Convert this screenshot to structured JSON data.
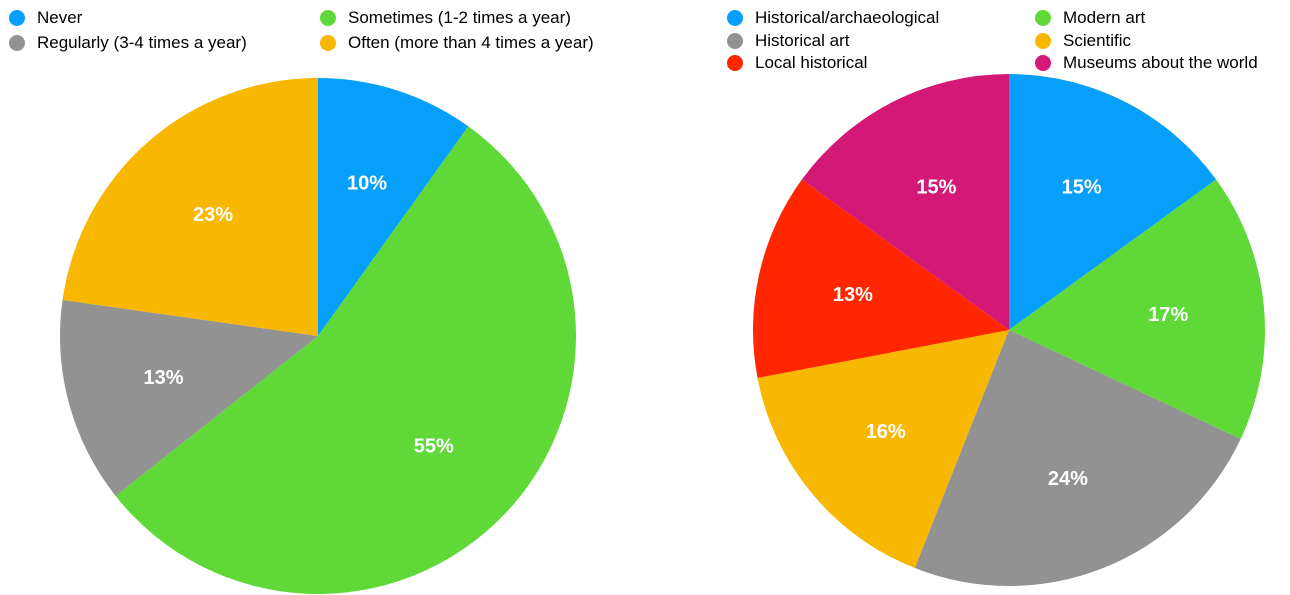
{
  "chart_data": [
    {
      "type": "pie",
      "categories": [
        "Never",
        "Sometimes (1-2 times a year)",
        "Regularly (3-4 times a year)",
        "Often (more than 4 times a year)"
      ],
      "values": [
        10,
        55,
        13,
        23
      ],
      "labels": [
        "10%",
        "55%",
        "13%",
        "23%"
      ],
      "colors": [
        "#069ffb",
        "#60d938",
        "#929292",
        "#f8b700"
      ],
      "legend_placement": "top"
    },
    {
      "type": "pie",
      "categories": [
        "Historical/archaeological",
        "Modern art",
        "Historical art",
        "Scientific",
        "Local historical",
        "Museums about the world"
      ],
      "values": [
        15,
        17,
        24,
        16,
        13,
        15
      ],
      "labels": [
        "15%",
        "17%",
        "24%",
        "16%",
        "13%",
        "15%"
      ],
      "colors": [
        "#069ffb",
        "#60d938",
        "#929292",
        "#f8b700",
        "#ff2600",
        "#d41876"
      ],
      "legend_placement": "top"
    }
  ]
}
